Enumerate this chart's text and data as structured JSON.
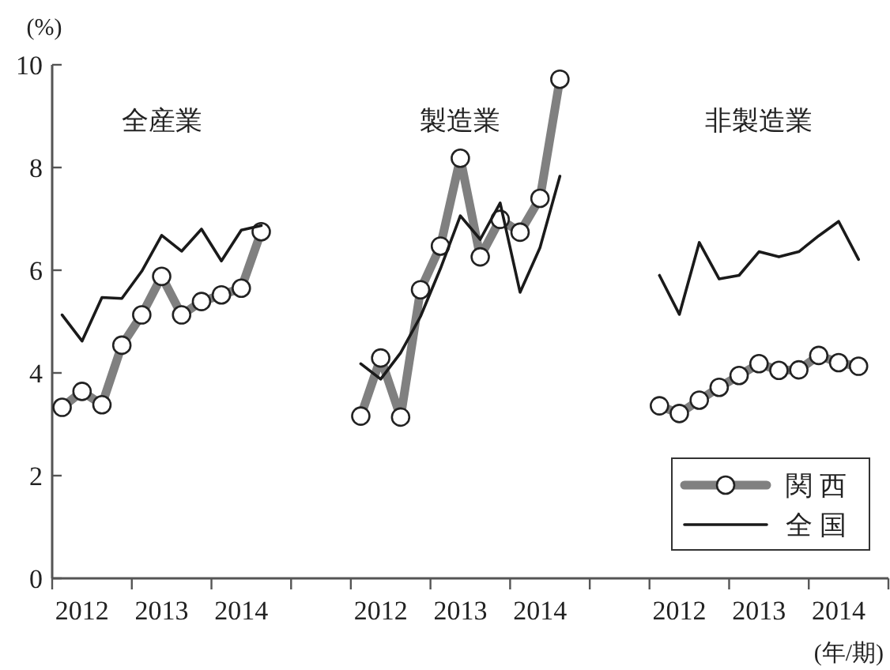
{
  "chart_data": {
    "type": "line",
    "ylabel": "(%)",
    "xlabel": "(年/期)",
    "ylim": [
      0,
      10
    ],
    "yticks": [
      0,
      2,
      4,
      6,
      8,
      10
    ],
    "categories": [
      null,
      "2012",
      null,
      null,
      null,
      "2013",
      null,
      null,
      null,
      "2014",
      null,
      null,
      null,
      null,
      null,
      null,
      "2012",
      null,
      null,
      null,
      "2013",
      null,
      null,
      null,
      "2014",
      null,
      null,
      null,
      null,
      null,
      null,
      "2012",
      null,
      null,
      null,
      "2013",
      null,
      null,
      null,
      "2014",
      null,
      null
    ],
    "grid": false,
    "legend": "bottom right",
    "line_style": "solid",
    "annotations": [
      "全産業",
      "製造業",
      "非製造業"
    ],
    "series": [
      {
        "name": "関 西",
        "color": "#808080",
        "marker": "circle",
        "values": [
          3.33,
          3.64,
          3.38,
          4.54,
          5.13,
          5.88,
          5.13,
          5.39,
          5.52,
          5.65,
          6.75,
          null,
          null,
          null,
          null,
          3.16,
          4.29,
          3.14,
          5.62,
          6.47,
          8.18,
          6.26,
          6.99,
          6.74,
          7.4,
          9.72,
          null,
          null,
          null,
          null,
          3.36,
          3.21,
          3.47,
          3.72,
          3.95,
          4.18,
          4.05,
          4.06,
          4.34,
          4.2,
          4.13,
          null
        ]
      },
      {
        "name": "全 国",
        "color": "#1a1a1a",
        "marker": "none",
        "values": [
          5.13,
          4.62,
          5.47,
          5.45,
          5.98,
          6.68,
          6.37,
          6.8,
          6.18,
          6.78,
          6.87,
          null,
          null,
          null,
          null,
          4.18,
          3.88,
          4.39,
          5.1,
          6.03,
          7.06,
          6.6,
          7.31,
          5.57,
          6.44,
          7.83,
          null,
          null,
          null,
          null,
          5.9,
          5.14,
          6.54,
          5.83,
          5.9,
          6.36,
          6.26,
          6.36,
          6.67,
          6.95,
          6.21,
          null
        ]
      }
    ]
  }
}
